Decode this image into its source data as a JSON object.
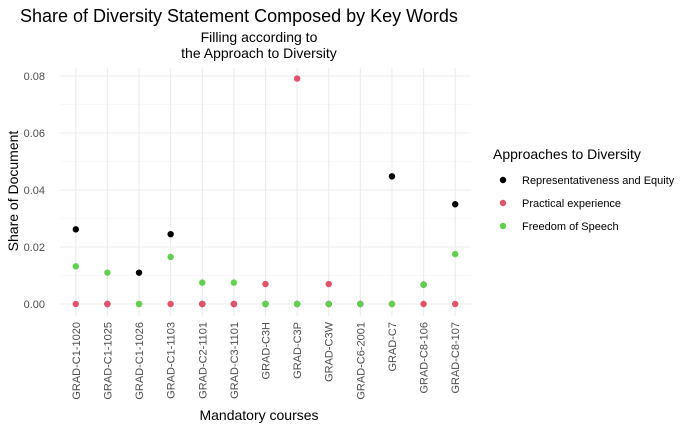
{
  "chart_data": {
    "type": "scatter",
    "title": "Share of Diversity Statement Composed by Key Words",
    "subtitle_lines": [
      "Filling according to",
      "the Approach to Diversity"
    ],
    "xlabel": "Mandatory courses",
    "ylabel": "Share of Document",
    "categories": [
      "GRAD-C1-1020",
      "GRAD-C1-1025",
      "GRAD-C1-1026",
      "GRAD-C1-1103",
      "GRAD-C2-1101",
      "GRAD-C3-1101",
      "GRAD-C3H",
      "GRAD-C3P",
      "GRAD-C3W",
      "GRAD-C6-2001",
      "GRAD-C7",
      "GRAD-C8-106",
      "GRAD-C8-107"
    ],
    "ylim": [
      0,
      0.08
    ],
    "yticks": [
      0.0,
      0.02,
      0.04,
      0.06,
      0.08
    ],
    "ytick_labels": [
      "0.00",
      "0.02",
      "0.04",
      "0.06",
      "0.08"
    ],
    "grid": true,
    "legend_placement": "right",
    "legend_title": "Approaches to Diversity",
    "series": [
      {
        "name": "Representativeness and Equity",
        "color": "#000000",
        "values": [
          0.0262,
          0.0,
          0.011,
          0.0245,
          0.0,
          0.0,
          0.0,
          0.0,
          0.0,
          0.0,
          0.0448,
          0.0068,
          0.035
        ]
      },
      {
        "name": "Practical experience",
        "color": "#DF536B",
        "values": [
          0.0,
          0.0,
          0.0,
          0.0,
          0.0,
          0.0,
          0.007,
          0.0791,
          0.007,
          0.0,
          0.0,
          0.0,
          0.0
        ]
      },
      {
        "name": "Freedom of Speech",
        "color": "#61D04F",
        "values": [
          0.0132,
          0.011,
          0.0,
          0.0165,
          0.0075,
          0.0075,
          0.0,
          0.0,
          0.0,
          0.0,
          0.0,
          0.0068,
          0.0175
        ]
      }
    ]
  }
}
